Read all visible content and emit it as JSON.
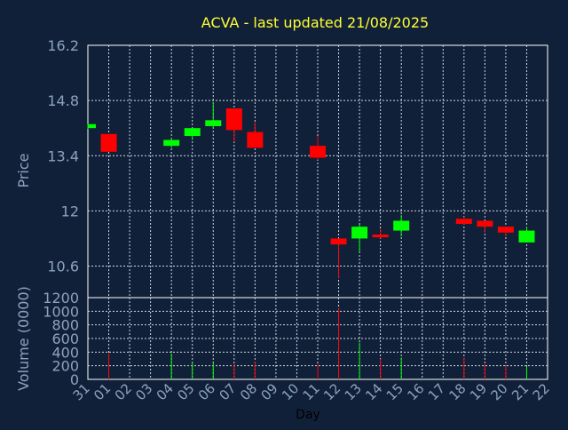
{
  "chart_data": {
    "type": "candlestick",
    "title": "ACVA - last updated 21/08/2025",
    "xlabel": "Day",
    "ylabel": "Price",
    "volume_label": "Volume (0000)",
    "x_ticks": [
      "31",
      "01",
      "02",
      "03",
      "04",
      "05",
      "06",
      "07",
      "08",
      "09",
      "10",
      "11",
      "12",
      "13",
      "14",
      "15",
      "16",
      "17",
      "18",
      "19",
      "20",
      "21",
      "22"
    ],
    "price_ylim": [
      9.8,
      16.2
    ],
    "price_ticks": [
      "16.2",
      "14.8",
      "13.4",
      "12",
      "10.6"
    ],
    "price_tick_values": [
      16.2,
      14.8,
      13.4,
      12.0,
      10.6
    ],
    "volume_ylim": [
      0,
      1200
    ],
    "volume_ticks": [
      "1200",
      "1000",
      "800",
      "600",
      "400",
      "200",
      "0"
    ],
    "volume_tick_values": [
      1200,
      1000,
      800,
      600,
      400,
      200,
      0
    ],
    "grid": true,
    "candles": [
      {
        "day": "31",
        "open": 14.1,
        "high": 14.2,
        "low": 14.08,
        "close": 14.2,
        "volume": 0
      },
      {
        "day": "01",
        "open": 13.95,
        "high": 13.95,
        "low": 13.5,
        "close": 13.5,
        "volume": 380
      },
      {
        "day": "04",
        "open": 13.65,
        "high": 13.85,
        "low": 13.6,
        "close": 13.8,
        "volume": 380
      },
      {
        "day": "05",
        "open": 13.9,
        "high": 14.1,
        "low": 13.8,
        "close": 14.1,
        "volume": 240
      },
      {
        "day": "06",
        "open": 14.15,
        "high": 14.75,
        "low": 14.1,
        "close": 14.3,
        "volume": 240
      },
      {
        "day": "07",
        "open": 14.6,
        "high": 14.6,
        "low": 13.75,
        "close": 14.05,
        "volume": 230
      },
      {
        "day": "08",
        "open": 14.0,
        "high": 14.25,
        "low": 13.6,
        "close": 13.6,
        "volume": 260
      },
      {
        "day": "11",
        "open": 13.65,
        "high": 13.9,
        "low": 13.3,
        "close": 13.35,
        "volume": 230
      },
      {
        "day": "12",
        "open": 11.3,
        "high": 11.3,
        "low": 10.3,
        "close": 11.15,
        "volume": 1050
      },
      {
        "day": "13",
        "open": 11.3,
        "high": 11.65,
        "low": 10.95,
        "close": 11.6,
        "volume": 540
      },
      {
        "day": "14",
        "open": 11.4,
        "high": 11.55,
        "low": 11.3,
        "close": 11.33,
        "volume": 300
      },
      {
        "day": "15",
        "open": 11.5,
        "high": 11.9,
        "low": 11.35,
        "close": 11.75,
        "volume": 320
      },
      {
        "day": "18",
        "open": 11.8,
        "high": 11.85,
        "low": 11.65,
        "close": 11.67,
        "volume": 320
      },
      {
        "day": "19",
        "open": 11.75,
        "high": 11.75,
        "low": 11.45,
        "close": 11.6,
        "volume": 220
      },
      {
        "day": "20",
        "open": 11.6,
        "high": 11.6,
        "low": 11.35,
        "close": 11.45,
        "volume": 200
      },
      {
        "day": "21",
        "open": 11.2,
        "high": 11.6,
        "low": 11.2,
        "close": 11.5,
        "volume": 190
      }
    ],
    "colors": {
      "background": "#112039",
      "plot_border": "#ffffff",
      "grid": "#cfd6e0",
      "axis_text": "#8ba3bf",
      "title": "#ffff33",
      "up": "#00ff00",
      "down": "#ff0000",
      "label_dark": "#000000"
    }
  }
}
